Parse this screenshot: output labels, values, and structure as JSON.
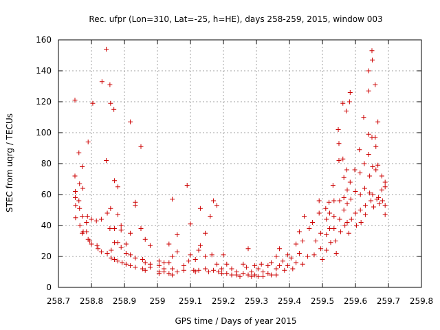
{
  "chart_data": {
    "type": "scatter",
    "title": "Rec. ufpr (Lon=310, Lat=-25, h=HE), days 258-259, 2015, window 003",
    "xlabel": "GPS time / Days of year 2015",
    "ylabel": "STEC from uqrg / TECUs",
    "xlim": [
      258.7,
      259.8
    ],
    "ylim": [
      0,
      160
    ],
    "x_ticks": [
      258.7,
      258.8,
      258.9,
      259,
      259.1,
      259.2,
      259.3,
      259.4,
      259.5,
      259.6,
      259.7,
      259.8
    ],
    "x_tick_labels": [
      "258.7",
      "258.8",
      "258.9",
      "259",
      "259.1",
      "259.2",
      "259.3",
      "259.4",
      "259.5",
      "259.6",
      "259.7",
      "259.8"
    ],
    "y_ticks": [
      0,
      20,
      40,
      60,
      80,
      100,
      120,
      140,
      160
    ],
    "y_tick_labels": [
      "0",
      "20",
      "40",
      "60",
      "80",
      "100",
      "120",
      "140",
      "160"
    ],
    "grid": true,
    "legend": "none",
    "marker": "+",
    "color": "#cc0000",
    "points": [
      [
        258.75,
        121
      ],
      [
        258.75,
        72
      ],
      [
        258.751,
        62
      ],
      [
        258.751,
        58
      ],
      [
        258.752,
        53
      ],
      [
        258.752,
        45
      ],
      [
        258.762,
        87
      ],
      [
        258.764,
        67
      ],
      [
        258.762,
        56
      ],
      [
        258.764,
        51
      ],
      [
        258.765,
        40
      ],
      [
        258.772,
        78
      ],
      [
        258.774,
        64
      ],
      [
        258.772,
        46
      ],
      [
        258.775,
        36
      ],
      [
        258.772,
        35
      ],
      [
        258.79,
        94
      ],
      [
        258.788,
        46
      ],
      [
        258.785,
        42
      ],
      [
        258.785,
        36
      ],
      [
        258.79,
        31
      ],
      [
        258.795,
        30
      ],
      [
        258.804,
        119
      ],
      [
        258.8,
        44
      ],
      [
        258.8,
        28
      ],
      [
        258.815,
        43
      ],
      [
        258.817,
        27
      ],
      [
        258.82,
        25
      ],
      [
        258.832,
        133
      ],
      [
        258.83,
        44
      ],
      [
        258.83,
        23
      ],
      [
        258.845,
        154
      ],
      [
        258.845,
        82
      ],
      [
        258.848,
        48
      ],
      [
        258.848,
        22
      ],
      [
        258.856,
        131
      ],
      [
        258.858,
        119
      ],
      [
        258.858,
        51
      ],
      [
        258.856,
        38
      ],
      [
        258.86,
        24
      ],
      [
        258.86,
        19
      ],
      [
        258.868,
        115
      ],
      [
        258.87,
        69
      ],
      [
        258.87,
        38
      ],
      [
        258.87,
        29
      ],
      [
        258.87,
        18
      ],
      [
        258.88,
        65
      ],
      [
        258.88,
        47
      ],
      [
        258.88,
        29
      ],
      [
        258.88,
        17
      ],
      [
        258.89,
        40
      ],
      [
        258.89,
        37
      ],
      [
        258.89,
        26
      ],
      [
        258.893,
        16
      ],
      [
        258.905,
        28
      ],
      [
        258.905,
        22
      ],
      [
        258.905,
        15
      ],
      [
        258.918,
        107
      ],
      [
        258.918,
        35
      ],
      [
        258.918,
        21
      ],
      [
        258.918,
        14
      ],
      [
        258.933,
        55
      ],
      [
        258.933,
        53
      ],
      [
        258.933,
        19
      ],
      [
        258.933,
        13
      ],
      [
        258.95,
        91
      ],
      [
        258.95,
        38
      ],
      [
        258.955,
        18
      ],
      [
        258.955,
        12
      ],
      [
        258.963,
        31
      ],
      [
        258.963,
        16
      ],
      [
        258.963,
        11
      ],
      [
        258.978,
        27
      ],
      [
        258.978,
        15
      ],
      [
        258.978,
        13
      ],
      [
        259.005,
        17
      ],
      [
        259.005,
        14
      ],
      [
        259.005,
        10
      ],
      [
        259.005,
        9
      ],
      [
        259.02,
        16
      ],
      [
        259.02,
        12
      ],
      [
        259.02,
        10
      ],
      [
        259.035,
        28
      ],
      [
        259.035,
        16
      ],
      [
        259.035,
        9
      ],
      [
        259.045,
        57
      ],
      [
        259.045,
        20
      ],
      [
        259.045,
        12
      ],
      [
        259.045,
        8
      ],
      [
        259.06,
        34
      ],
      [
        259.06,
        23
      ],
      [
        259.06,
        10
      ],
      [
        259.08,
        14
      ],
      [
        259.08,
        11
      ],
      [
        259.09,
        66
      ],
      [
        259.095,
        17
      ],
      [
        259.1,
        41
      ],
      [
        259.1,
        21
      ],
      [
        259.11,
        11
      ],
      [
        259.115,
        18
      ],
      [
        259.115,
        10
      ],
      [
        259.125,
        24
      ],
      [
        259.125,
        11
      ],
      [
        259.13,
        51
      ],
      [
        259.13,
        27
      ],
      [
        259.145,
        35
      ],
      [
        259.145,
        20
      ],
      [
        259.145,
        12
      ],
      [
        259.155,
        10
      ],
      [
        259.16,
        46
      ],
      [
        259.165,
        21
      ],
      [
        259.17,
        56
      ],
      [
        259.17,
        11
      ],
      [
        259.18,
        53
      ],
      [
        259.18,
        15
      ],
      [
        259.185,
        10
      ],
      [
        259.195,
        12
      ],
      [
        259.195,
        9
      ],
      [
        259.2,
        21
      ],
      [
        259.21,
        15
      ],
      [
        259.21,
        9
      ],
      [
        259.225,
        12
      ],
      [
        259.225,
        8
      ],
      [
        259.24,
        10
      ],
      [
        259.24,
        8
      ],
      [
        259.25,
        7
      ],
      [
        259.26,
        15
      ],
      [
        259.26,
        9
      ],
      [
        259.27,
        13
      ],
      [
        259.275,
        25
      ],
      [
        259.275,
        8
      ],
      [
        259.285,
        10
      ],
      [
        259.285,
        7
      ],
      [
        259.295,
        14
      ],
      [
        259.295,
        8
      ],
      [
        259.305,
        12
      ],
      [
        259.305,
        7
      ],
      [
        259.315,
        15
      ],
      [
        259.32,
        10
      ],
      [
        259.32,
        7
      ],
      [
        259.335,
        14
      ],
      [
        259.335,
        9
      ],
      [
        259.345,
        16
      ],
      [
        259.345,
        8
      ],
      [
        259.36,
        20
      ],
      [
        259.36,
        12
      ],
      [
        259.36,
        8
      ],
      [
        259.37,
        25
      ],
      [
        259.37,
        14
      ],
      [
        259.38,
        17
      ],
      [
        259.385,
        11
      ],
      [
        259.395,
        21
      ],
      [
        259.395,
        14
      ],
      [
        259.405,
        19
      ],
      [
        259.41,
        12
      ],
      [
        259.42,
        28
      ],
      [
        259.42,
        16
      ],
      [
        259.43,
        36
      ],
      [
        259.43,
        22
      ],
      [
        259.44,
        30
      ],
      [
        259.44,
        15
      ],
      [
        259.445,
        46
      ],
      [
        259.455,
        20
      ],
      [
        259.46,
        38
      ],
      [
        259.47,
        42
      ],
      [
        259.475,
        21
      ],
      [
        259.48,
        30
      ],
      [
        259.49,
        56
      ],
      [
        259.49,
        48
      ],
      [
        259.495,
        35
      ],
      [
        259.495,
        25
      ],
      [
        259.5,
        18
      ],
      [
        259.51,
        51
      ],
      [
        259.512,
        44
      ],
      [
        259.512,
        34
      ],
      [
        259.512,
        24
      ],
      [
        259.52,
        55
      ],
      [
        259.522,
        48
      ],
      [
        259.522,
        38
      ],
      [
        259.525,
        29
      ],
      [
        259.532,
        66
      ],
      [
        259.535,
        56
      ],
      [
        259.535,
        46
      ],
      [
        259.535,
        38
      ],
      [
        259.54,
        30
      ],
      [
        259.542,
        22
      ],
      [
        259.55,
        93
      ],
      [
        259.548,
        102
      ],
      [
        259.55,
        82
      ],
      [
        259.552,
        56
      ],
      [
        259.552,
        44
      ],
      [
        259.555,
        36
      ],
      [
        259.562,
        119
      ],
      [
        259.562,
        83
      ],
      [
        259.565,
        71
      ],
      [
        259.565,
        58
      ],
      [
        259.565,
        50
      ],
      [
        259.568,
        40
      ],
      [
        259.572,
        114
      ],
      [
        259.574,
        76
      ],
      [
        259.575,
        63
      ],
      [
        259.575,
        54
      ],
      [
        259.575,
        42
      ],
      [
        259.58,
        35
      ],
      [
        259.582,
        120
      ],
      [
        259.584,
        126
      ],
      [
        259.584,
        68
      ],
      [
        259.586,
        57
      ],
      [
        259.588,
        44
      ],
      [
        259.598,
        76
      ],
      [
        259.6,
        62
      ],
      [
        259.6,
        48
      ],
      [
        259.603,
        40
      ],
      [
        259.612,
        89
      ],
      [
        259.614,
        74
      ],
      [
        259.615,
        60
      ],
      [
        259.615,
        50
      ],
      [
        259.617,
        42
      ],
      [
        259.625,
        110
      ],
      [
        259.627,
        80
      ],
      [
        259.628,
        64
      ],
      [
        259.63,
        53
      ],
      [
        259.63,
        47
      ],
      [
        259.64,
        99
      ],
      [
        259.64,
        86
      ],
      [
        259.643,
        72
      ],
      [
        259.643,
        61
      ],
      [
        259.647,
        56
      ],
      [
        259.65,
        153
      ],
      [
        259.651,
        147
      ],
      [
        259.65,
        97
      ],
      [
        259.652,
        78
      ],
      [
        259.652,
        60
      ],
      [
        259.655,
        52
      ],
      [
        259.66,
        131
      ],
      [
        259.66,
        97
      ],
      [
        259.662,
        91
      ],
      [
        259.662,
        76
      ],
      [
        259.665,
        57
      ],
      [
        259.668,
        107
      ],
      [
        259.668,
        79
      ],
      [
        259.67,
        58
      ],
      [
        259.672,
        54
      ],
      [
        259.68,
        72
      ],
      [
        259.68,
        63
      ],
      [
        259.682,
        56
      ],
      [
        259.69,
        68
      ],
      [
        259.69,
        65
      ],
      [
        259.69,
        53
      ],
      [
        259.69,
        47
      ],
      [
        259.64,
        127
      ],
      [
        259.64,
        140
      ]
    ]
  }
}
